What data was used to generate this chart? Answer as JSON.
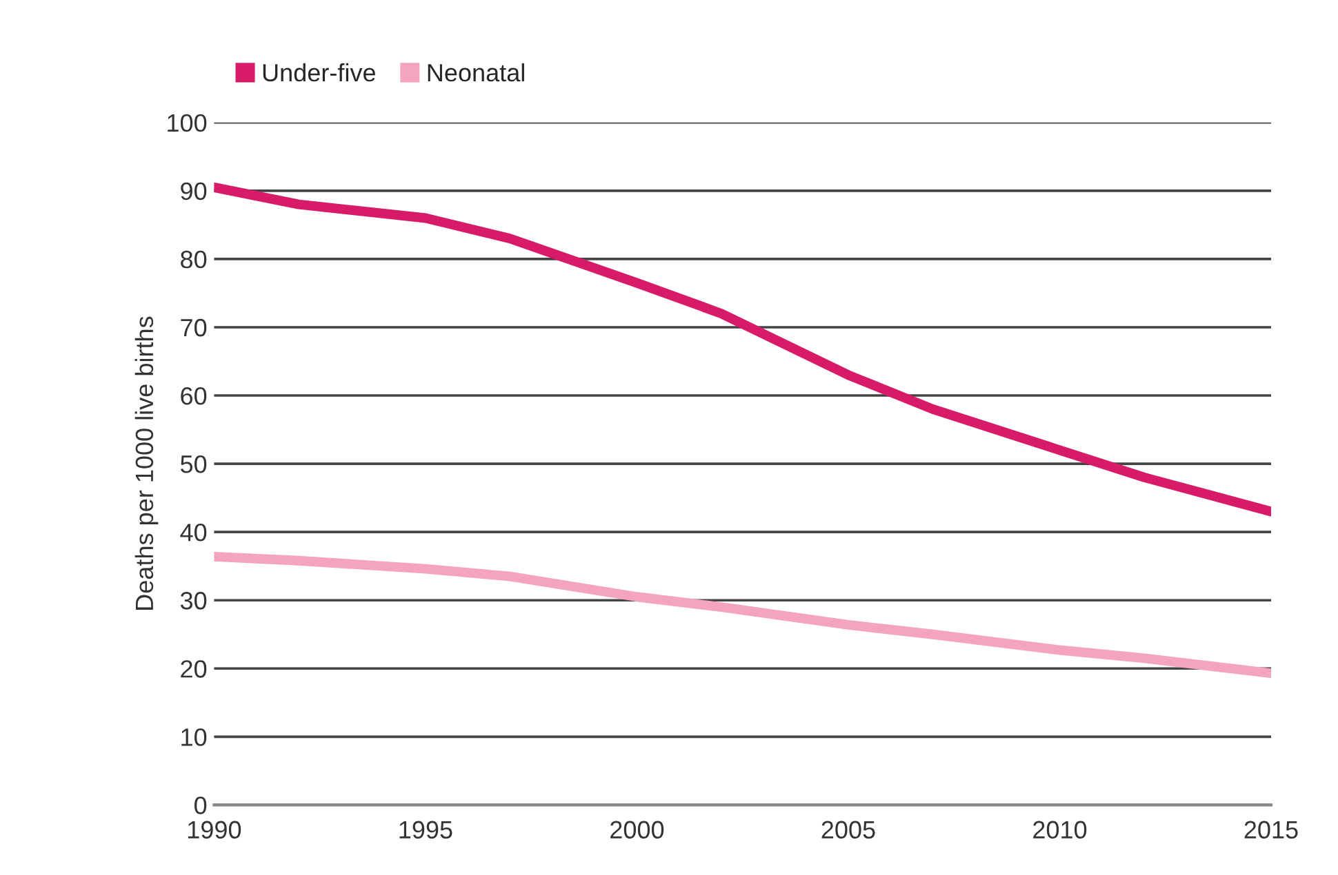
{
  "chart_data": {
    "type": "line",
    "ylabel": "Deaths per 1000 live births",
    "x": [
      1990,
      1992,
      1995,
      1997,
      2000,
      2002,
      2005,
      2007,
      2010,
      2012,
      2015
    ],
    "series": [
      {
        "name": "Under-five",
        "color": "#d81b68",
        "values": [
          90.5,
          88,
          86,
          83,
          76.5,
          72,
          63,
          58,
          52,
          48,
          43
        ]
      },
      {
        "name": "Neonatal",
        "color": "#f4a3c1",
        "values": [
          36.4,
          35.8,
          34.6,
          33.5,
          30.5,
          29,
          26.4,
          25,
          22.7,
          21.5,
          19.3
        ]
      }
    ],
    "xlim": [
      1990,
      2015
    ],
    "xticks": [
      1990,
      1995,
      2000,
      2005,
      2010,
      2015
    ],
    "ylim": [
      0,
      100
    ],
    "yticks": [
      0,
      10,
      20,
      30,
      40,
      50,
      60,
      70,
      80,
      90,
      100
    ],
    "grid": "y",
    "legend": "top left",
    "marker": "none",
    "line_style": "solid"
  }
}
